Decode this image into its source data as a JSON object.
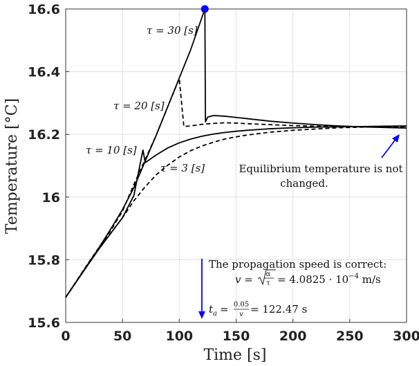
{
  "chart_data": {
    "type": "line",
    "xlabel": "Time [s]",
    "ylabel": "Temperature [°C]",
    "xlim": [
      0,
      300
    ],
    "ylim": [
      15.6,
      16.6
    ],
    "xticks": [
      "0",
      "50",
      "100",
      "150",
      "200",
      "250",
      "300"
    ],
    "yticks": [
      "15.6",
      "15.8",
      "16",
      "16.2",
      "16.4",
      "16.6"
    ],
    "grid": true,
    "series": [
      {
        "name": "τ = 3 [s]",
        "style": "dashed",
        "x": [
          0,
          10,
          20,
          30,
          40,
          50,
          60,
          70,
          80,
          90,
          100,
          110,
          120,
          130,
          140,
          150,
          160,
          180,
          200,
          220,
          240,
          260,
          280,
          300
        ],
        "y": [
          15.68,
          15.733,
          15.786,
          15.838,
          15.886,
          15.934,
          15.988,
          16.033,
          16.072,
          16.102,
          16.128,
          16.148,
          16.163,
          16.175,
          16.185,
          16.192,
          16.198,
          16.207,
          16.213,
          16.217,
          16.221,
          16.223,
          16.224,
          16.225
        ]
      },
      {
        "name": "τ = 10 [s]",
        "style": "solid",
        "x": [
          0,
          10,
          20,
          30,
          40,
          50,
          60,
          68,
          70,
          72,
          80,
          90,
          100,
          110,
          120,
          130,
          140,
          150,
          160,
          180,
          200,
          220,
          240,
          260,
          280,
          300
        ],
        "y": [
          15.68,
          15.733,
          15.786,
          15.838,
          15.886,
          15.934,
          16.005,
          16.15,
          16.11,
          16.115,
          16.135,
          16.157,
          16.173,
          16.185,
          16.194,
          16.201,
          16.206,
          16.21,
          16.213,
          16.218,
          16.221,
          16.223,
          16.224,
          16.225,
          16.226,
          16.227
        ]
      },
      {
        "name": "τ = 20 [s]",
        "style": "dashed",
        "x": [
          0,
          10,
          20,
          30,
          40,
          50,
          60,
          70,
          80,
          90,
          100,
          102,
          104,
          110,
          120,
          130,
          140,
          150,
          160,
          180,
          200,
          220,
          240,
          260,
          280,
          300
        ],
        "y": [
          15.68,
          15.735,
          15.79,
          15.843,
          15.895,
          15.955,
          16.04,
          16.12,
          16.2,
          16.29,
          16.378,
          16.3,
          16.225,
          16.227,
          16.232,
          16.235,
          16.237,
          16.236,
          16.234,
          16.231,
          16.228,
          16.226,
          16.225,
          16.224,
          16.223,
          16.222
        ]
      },
      {
        "name": "τ = 30 [s]",
        "style": "solid",
        "x": [
          0,
          10,
          20,
          30,
          40,
          50,
          60,
          70,
          80,
          90,
          100,
          110,
          122.47,
          122.5,
          123,
          125,
          130,
          140,
          150,
          160,
          180,
          200,
          220,
          240,
          260,
          280,
          300
        ],
        "y": [
          15.68,
          15.734,
          15.788,
          15.842,
          15.9,
          15.96,
          16.03,
          16.115,
          16.2,
          16.29,
          16.38,
          16.47,
          16.6,
          16.6,
          16.24,
          16.255,
          16.26,
          16.258,
          16.254,
          16.25,
          16.242,
          16.236,
          16.231,
          16.227,
          16.224,
          16.222,
          16.22
        ]
      }
    ],
    "marker": {
      "x": 122.47,
      "y": 16.6,
      "color": "#0000ff"
    },
    "annotations": {
      "tau30": "τ = 30 [s]",
      "tau20": "τ = 20 [s]",
      "tau10": "τ = 10 [s]",
      "tau3": "τ = 3 [s]",
      "equilibrium_line1": "Equilibrium temperature is not",
      "equilibrium_line2": "changed.",
      "propagation_line1": "The propagation speed is correct:",
      "propagation_v_prefix": "v = ",
      "propagation_alpha": "α",
      "propagation_tau": "τ",
      "propagation_v_suffix": " = 4.0825 · 10",
      "propagation_exp": "−4",
      "propagation_unit": " m/s",
      "ta_prefix": "t",
      "ta_sub": "a",
      "ta_eq": " = ",
      "ta_num": "0.05",
      "ta_den": "v",
      "ta_suffix": " = 122.47 s"
    },
    "colors": {
      "line": "#000000",
      "arrow": "#0000ff",
      "grid": "#e0e0e0"
    }
  }
}
